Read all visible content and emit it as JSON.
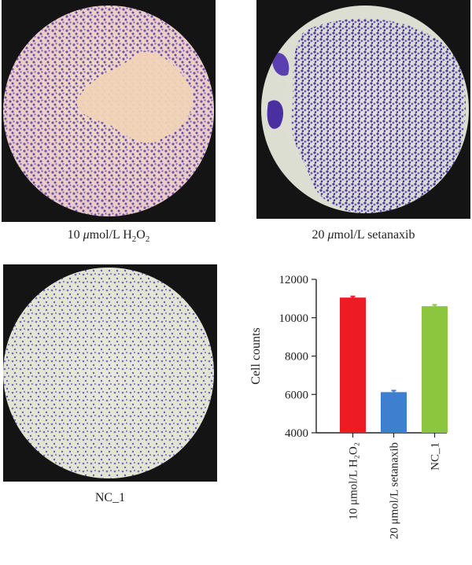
{
  "figure": {
    "panels": [
      {
        "id": "h2o2",
        "caption_parts": [
          "10 ",
          "μ",
          "mol/L H",
          "2",
          "O",
          "2"
        ]
      },
      {
        "id": "setanaxib",
        "caption_parts": [
          "20 ",
          "μ",
          "mol/L setanaxib"
        ]
      },
      {
        "id": "nc1",
        "caption_parts": [
          "NC_1"
        ]
      }
    ]
  },
  "chart_data": {
    "type": "bar",
    "ylabel": "Cell counts",
    "ylim": [
      4000,
      12000
    ],
    "yticks": [
      4000,
      6000,
      8000,
      10000,
      12000
    ],
    "categories": [
      "10 μmol/L H₂O₂",
      "20 μmol/L setanaxib",
      "NC_1"
    ],
    "values": [
      11050,
      6120,
      10600
    ],
    "errors": [
      60,
      80,
      70
    ],
    "colors": [
      "#ed1c24",
      "#3f7fcf",
      "#8cc63f"
    ]
  },
  "colors": {
    "stain": "#6a4fb0",
    "background_field": "#efe6c9",
    "frame": "#141414"
  }
}
